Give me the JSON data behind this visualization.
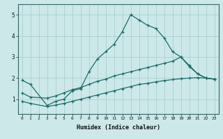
{
  "xlabel": "Humidex (Indice chaleur)",
  "bg_color": "#cce8e8",
  "grid_color": "#aacfcf",
  "line_color": "#1a6b6b",
  "spine_color": "#336666",
  "x_ticks": [
    0,
    1,
    2,
    3,
    4,
    5,
    6,
    7,
    8,
    9,
    10,
    11,
    12,
    13,
    14,
    15,
    16,
    17,
    18,
    19,
    20,
    21,
    22,
    23
  ],
  "y_ticks": [
    1,
    2,
    3,
    4,
    5
  ],
  "ylim": [
    0.3,
    5.5
  ],
  "xlim": [
    -0.5,
    23.5
  ],
  "series": [
    {
      "x": [
        0,
        1,
        3,
        4,
        5,
        6,
        7,
        8,
        9,
        10,
        11,
        12,
        13,
        14,
        15,
        16,
        17,
        18,
        19,
        20,
        21,
        22,
        23
      ],
      "y": [
        1.9,
        1.7,
        0.7,
        0.9,
        1.0,
        1.4,
        1.5,
        2.3,
        2.9,
        3.25,
        3.6,
        4.2,
        5.0,
        4.75,
        4.5,
        4.35,
        3.9,
        3.25,
        3.0,
        2.6,
        2.2,
        2.0,
        1.95
      ]
    },
    {
      "x": [
        0,
        1,
        3,
        4,
        5,
        6,
        7,
        8,
        9,
        10,
        11,
        12,
        13,
        14,
        15,
        16,
        17,
        18,
        19,
        20,
        21,
        22,
        23
      ],
      "y": [
        1.3,
        1.1,
        1.05,
        1.15,
        1.3,
        1.45,
        1.55,
        1.7,
        1.85,
        1.95,
        2.1,
        2.2,
        2.3,
        2.4,
        2.5,
        2.6,
        2.7,
        2.8,
        3.0,
        2.55,
        2.2,
        2.0,
        1.95
      ]
    },
    {
      "x": [
        0,
        1,
        3,
        4,
        5,
        6,
        7,
        8,
        9,
        10,
        11,
        12,
        13,
        14,
        15,
        16,
        17,
        18,
        19,
        20,
        21,
        22,
        23
      ],
      "y": [
        0.9,
        0.8,
        0.65,
        0.72,
        0.8,
        0.9,
        1.0,
        1.1,
        1.2,
        1.3,
        1.4,
        1.5,
        1.6,
        1.7,
        1.75,
        1.82,
        1.88,
        1.93,
        1.97,
        2.0,
        2.02,
        2.0,
        1.95
      ]
    }
  ]
}
